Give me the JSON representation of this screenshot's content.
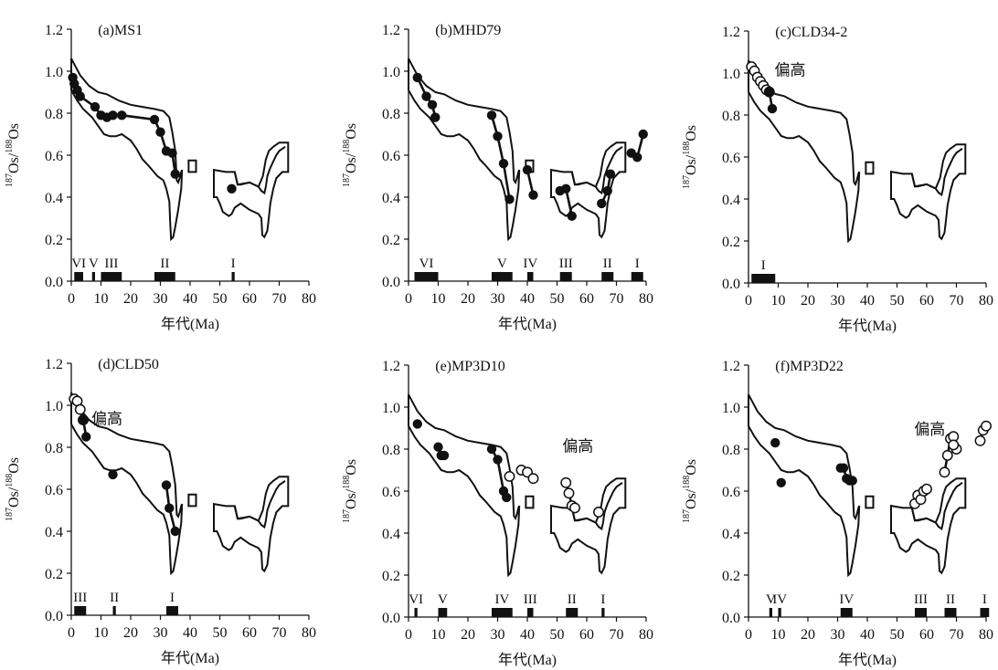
{
  "chart_data": [
    {
      "type": "scatter",
      "title": "(a)MS1",
      "xlabel_main": "年代",
      "xlabel_unit": "(Ma)",
      "ylabel_sup1": "187",
      "ylabel_base1": "Os/",
      "ylabel_sup2": "188",
      "ylabel_base2": "Os",
      "xlim": [
        0,
        80
      ],
      "ylim": [
        0,
        1.2
      ],
      "xticks": [
        "0",
        "10",
        "20",
        "30",
        "40",
        "50",
        "60",
        "70",
        "80"
      ],
      "yticks": [
        "0.0",
        "0.2",
        "0.4",
        "0.6",
        "0.8",
        "1.0",
        "1.2"
      ],
      "annotation": "",
      "series": [
        {
          "marker": "filled",
          "connected": true,
          "points": [
            [
              0.5,
              0.97
            ],
            [
              1,
              0.94
            ],
            [
              2,
              0.91
            ],
            [
              3,
              0.88
            ],
            [
              8,
              0.83
            ],
            [
              10,
              0.79
            ],
            [
              12,
              0.78
            ],
            [
              14,
              0.79
            ],
            [
              17,
              0.79
            ],
            [
              28,
              0.77
            ],
            [
              30,
              0.71
            ],
            [
              32,
              0.62
            ],
            [
              34,
              0.61
            ],
            [
              35,
              0.51
            ]
          ]
        },
        {
          "marker": "filled",
          "connected": false,
          "points": [
            [
              54,
              0.44
            ]
          ]
        }
      ],
      "intervals": [
        {
          "label": "VI",
          "start": 1,
          "end": 4
        },
        {
          "label": "V",
          "start": 7,
          "end": 8
        },
        {
          "label": "III",
          "start": 10,
          "end": 17
        },
        {
          "label": "II",
          "start": 28,
          "end": 35
        },
        {
          "label": "I",
          "start": 54,
          "end": 55
        }
      ]
    },
    {
      "type": "scatter",
      "title": "(b)MHD79",
      "xlabel_main": "年代",
      "xlabel_unit": "(Ma)",
      "ylabel_sup1": "187",
      "ylabel_base1": "Os/",
      "ylabel_sup2": "188",
      "ylabel_base2": "Os",
      "xlim": [
        0,
        80
      ],
      "ylim": [
        0,
        1.2
      ],
      "xticks": [
        "0",
        "10",
        "20",
        "30",
        "40",
        "50",
        "60",
        "70",
        "80"
      ],
      "yticks": [
        "0.0",
        "0.2",
        "0.4",
        "0.6",
        "0.8",
        "1.0",
        "1.2"
      ],
      "annotation": "",
      "series": [
        {
          "marker": "filled",
          "connected": true,
          "points": [
            [
              3,
              0.97
            ],
            [
              6,
              0.88
            ],
            [
              8,
              0.84
            ],
            [
              9,
              0.78
            ]
          ]
        },
        {
          "marker": "filled",
          "connected": true,
          "points": [
            [
              28,
              0.79
            ],
            [
              30,
              0.69
            ],
            [
              32,
              0.56
            ],
            [
              34,
              0.39
            ]
          ]
        },
        {
          "marker": "filled",
          "connected": true,
          "points": [
            [
              40,
              0.53
            ],
            [
              42,
              0.41
            ]
          ]
        },
        {
          "marker": "filled",
          "connected": true,
          "points": [
            [
              51,
              0.43
            ],
            [
              53,
              0.44
            ],
            [
              55,
              0.31
            ]
          ]
        },
        {
          "marker": "filled",
          "connected": true,
          "points": [
            [
              65,
              0.37
            ],
            [
              67,
              0.43
            ],
            [
              68,
              0.51
            ]
          ]
        },
        {
          "marker": "filled",
          "connected": true,
          "points": [
            [
              75,
              0.61
            ],
            [
              77,
              0.59
            ],
            [
              79,
              0.7
            ]
          ]
        }
      ],
      "intervals": [
        {
          "label": "VI",
          "start": 2,
          "end": 10
        },
        {
          "label": "V",
          "start": 28,
          "end": 35
        },
        {
          "label": "IV",
          "start": 40,
          "end": 42
        },
        {
          "label": "III",
          "start": 51,
          "end": 55
        },
        {
          "label": "II",
          "start": 65,
          "end": 69
        },
        {
          "label": "I",
          "start": 75,
          "end": 79
        }
      ]
    },
    {
      "type": "scatter",
      "title": "(c)CLD34-2",
      "xlabel_main": "年代",
      "xlabel_unit": "(Ma)",
      "ylabel_sup1": "187",
      "ylabel_base1": "Os/",
      "ylabel_sup2": "188",
      "ylabel_base2": "Os",
      "xlim": [
        0,
        80
      ],
      "ylim": [
        0,
        1.2
      ],
      "xticks": [
        "0",
        "10",
        "20",
        "30",
        "40",
        "50",
        "60",
        "70",
        "80"
      ],
      "yticks": [
        "0.0",
        "0.2",
        "0.4",
        "0.6",
        "0.8",
        "1.0",
        "1.2"
      ],
      "annotation": "偏高",
      "series": [
        {
          "marker": "open",
          "connected": true,
          "points": [
            [
              1,
              1.03
            ],
            [
              2,
              1.01
            ],
            [
              3,
              0.98
            ],
            [
              4,
              0.96
            ],
            [
              5,
              0.94
            ],
            [
              6,
              0.92
            ],
            [
              7,
              0.91
            ]
          ]
        },
        {
          "marker": "filled",
          "connected": true,
          "points": [
            [
              7,
              0.91
            ],
            [
              8,
              0.83
            ]
          ]
        }
      ],
      "intervals": [
        {
          "label": "I",
          "start": 1,
          "end": 9
        }
      ]
    },
    {
      "type": "scatter",
      "title": "(d)CLD50",
      "xlabel_main": "年代",
      "xlabel_unit": "(Ma)",
      "ylabel_sup1": "187",
      "ylabel_base1": "Os/",
      "ylabel_sup2": "188",
      "ylabel_base2": "Os",
      "xlim": [
        0,
        80
      ],
      "ylim": [
        0,
        1.2
      ],
      "xticks": [
        "0",
        "10",
        "20",
        "30",
        "40",
        "50",
        "60",
        "70",
        "80"
      ],
      "yticks": [
        "0.0",
        "0.2",
        "0.4",
        "0.6",
        "0.8",
        "1.0",
        "1.2"
      ],
      "annotation": "偏高",
      "series": [
        {
          "marker": "open",
          "connected": true,
          "points": [
            [
              1,
              1.03
            ],
            [
              2,
              1.02
            ],
            [
              3,
              0.98
            ],
            [
              4,
              0.93
            ]
          ]
        },
        {
          "marker": "filled",
          "connected": true,
          "points": [
            [
              4,
              0.93
            ],
            [
              5,
              0.85
            ]
          ]
        },
        {
          "marker": "filled",
          "connected": false,
          "points": [
            [
              14,
              0.67
            ]
          ]
        },
        {
          "marker": "filled",
          "connected": true,
          "points": [
            [
              32,
              0.62
            ],
            [
              33,
              0.51
            ],
            [
              35,
              0.4
            ]
          ]
        }
      ],
      "intervals": [
        {
          "label": "III",
          "start": 1,
          "end": 5
        },
        {
          "label": "II",
          "start": 14,
          "end": 15
        },
        {
          "label": "I",
          "start": 32,
          "end": 36
        }
      ]
    },
    {
      "type": "scatter",
      "title": "(e)MP3D10",
      "xlabel_main": "年代",
      "xlabel_unit": "(Ma)",
      "ylabel_sup1": "187",
      "ylabel_base1": "Os/",
      "ylabel_sup2": "188",
      "ylabel_base2": "Os",
      "xlim": [
        0,
        80
      ],
      "ylim": [
        0,
        1.2
      ],
      "xticks": [
        "0",
        "10",
        "20",
        "30",
        "40",
        "50",
        "60",
        "70",
        "80"
      ],
      "yticks": [
        "0.0",
        "0.2",
        "0.4",
        "0.6",
        "0.8",
        "1.0",
        "1.2"
      ],
      "annotation": "偏高",
      "series": [
        {
          "marker": "filled",
          "connected": false,
          "points": [
            [
              3,
              0.92
            ]
          ]
        },
        {
          "marker": "filled",
          "connected": true,
          "points": [
            [
              10,
              0.81
            ],
            [
              11,
              0.77
            ],
            [
              12,
              0.77
            ]
          ]
        },
        {
          "marker": "filled",
          "connected": true,
          "points": [
            [
              28,
              0.8
            ],
            [
              30,
              0.75
            ],
            [
              32,
              0.6
            ],
            [
              33,
              0.57
            ]
          ]
        },
        {
          "marker": "open",
          "connected": false,
          "points": [
            [
              34,
              0.67
            ],
            [
              38,
              0.7
            ],
            [
              40,
              0.69
            ],
            [
              42,
              0.66
            ]
          ]
        },
        {
          "marker": "open",
          "connected": true,
          "points": [
            [
              53,
              0.64
            ],
            [
              54,
              0.59
            ],
            [
              55,
              0.53
            ],
            [
              56,
              0.52
            ]
          ]
        },
        {
          "marker": "open",
          "connected": false,
          "points": [
            [
              64,
              0.5
            ]
          ]
        }
      ],
      "intervals": [
        {
          "label": "VI",
          "start": 2,
          "end": 3
        },
        {
          "label": "V",
          "start": 10,
          "end": 13
        },
        {
          "label": "IV",
          "start": 28,
          "end": 35
        },
        {
          "label": "III",
          "start": 40,
          "end": 42
        },
        {
          "label": "II",
          "start": 53,
          "end": 57
        },
        {
          "label": "I",
          "start": 65,
          "end": 66
        }
      ]
    },
    {
      "type": "scatter",
      "title": "(f)MP3D22",
      "xlabel_main": "年代",
      "xlabel_unit": "(Ma)",
      "ylabel_sup1": "187",
      "ylabel_base1": "Os/",
      "ylabel_sup2": "188",
      "ylabel_base2": "Os",
      "xlim": [
        0,
        80
      ],
      "ylim": [
        0,
        1.2
      ],
      "xticks": [
        "0",
        "10",
        "20",
        "30",
        "40",
        "50",
        "60",
        "70",
        "80"
      ],
      "yticks": [
        "0.0",
        "0.2",
        "0.4",
        "0.6",
        "0.8",
        "1.0",
        "1.2"
      ],
      "annotation": "偏高",
      "series": [
        {
          "marker": "filled",
          "connected": false,
          "points": [
            [
              9,
              0.83
            ]
          ]
        },
        {
          "marker": "filled",
          "connected": false,
          "points": [
            [
              11,
              0.64
            ]
          ]
        },
        {
          "marker": "filled",
          "connected": true,
          "points": [
            [
              31,
              0.71
            ],
            [
              32,
              0.71
            ],
            [
              33,
              0.66
            ],
            [
              34,
              0.65
            ],
            [
              35,
              0.65
            ]
          ]
        },
        {
          "marker": "open",
          "connected": true,
          "points": [
            [
              56,
              0.54
            ],
            [
              57,
              0.58
            ],
            [
              58,
              0.56
            ],
            [
              59,
              0.6
            ],
            [
              60,
              0.61
            ]
          ]
        },
        {
          "marker": "open",
          "connected": true,
          "points": [
            [
              66,
              0.69
            ],
            [
              67,
              0.77
            ],
            [
              68,
              0.85
            ],
            [
              69,
              0.86
            ]
          ]
        },
        {
          "marker": "open",
          "connected": false,
          "points": [
            [
              70,
              0.8
            ],
            [
              69,
              0.82
            ]
          ]
        },
        {
          "marker": "open",
          "connected": true,
          "points": [
            [
              78,
              0.84
            ],
            [
              79,
              0.89
            ],
            [
              80,
              0.91
            ]
          ]
        }
      ],
      "intervals": [
        {
          "label": "V",
          "start": 7,
          "end": 8
        },
        {
          "label": "IV",
          "start": 10,
          "end": 11
        },
        {
          "label": "IV",
          "start": 31,
          "end": 35
        },
        {
          "label": "III",
          "start": 56,
          "end": 60
        },
        {
          "label": "II",
          "start": 66,
          "end": 70
        },
        {
          "label": "I",
          "start": 78,
          "end": 81
        }
      ]
    }
  ]
}
